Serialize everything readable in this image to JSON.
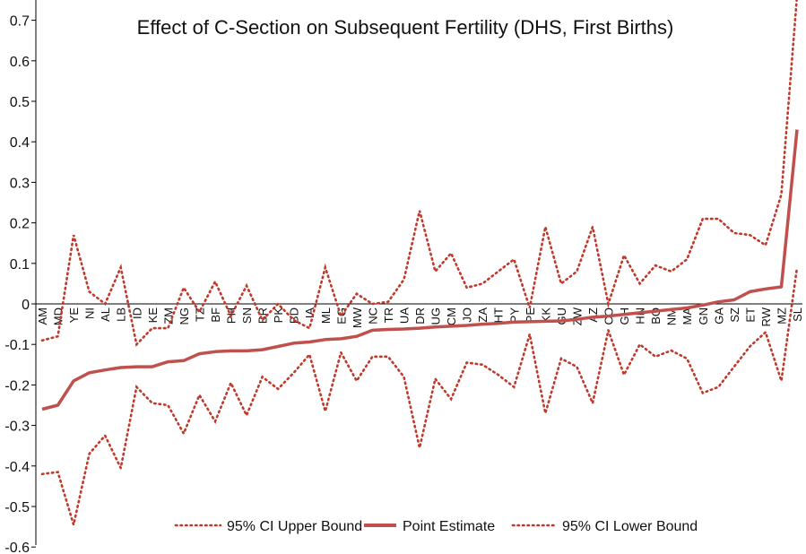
{
  "chart_data": {
    "type": "line",
    "title": "Effect of C-Section on Subsequent Fertility (DHS, First Births)",
    "xlabel": "",
    "ylabel": "",
    "ylim": [
      -0.6,
      0.75
    ],
    "yticks": [
      "0.7",
      "0.6",
      "0.5",
      "0.4",
      "0.3",
      "0.2",
      "0.1",
      "0",
      "-0.1",
      "-0.2",
      "-0.3",
      "-0.4",
      "-0.5",
      "-0.6"
    ],
    "grid": false,
    "legend_position": "bottom",
    "categories": [
      "AM",
      "MD",
      "YE",
      "NI",
      "AL",
      "LB",
      "ID",
      "KE",
      "ZM",
      "NG",
      "TZ",
      "BF",
      "PH",
      "SN",
      "BR",
      "PK",
      "BD",
      "IA",
      "ML",
      "EG",
      "MW",
      "NC",
      "TR",
      "UA",
      "DR",
      "UG",
      "CM",
      "JO",
      "ZA",
      "HT",
      "PY",
      "PE",
      "KK",
      "GU",
      "ZW",
      "AZ",
      "CO",
      "GH",
      "HN",
      "BO",
      "NM",
      "MA",
      "GN",
      "GA",
      "SZ",
      "ET",
      "RW",
      "MZ",
      "SL"
    ],
    "series": [
      {
        "name": "95% CI Upper Bound",
        "style": "dotted",
        "color": "#c0392b",
        "values": [
          -0.09,
          -0.08,
          0.17,
          0.03,
          0.0,
          0.09,
          -0.1,
          -0.06,
          -0.06,
          0.04,
          -0.02,
          0.055,
          -0.03,
          0.045,
          -0.04,
          0.0,
          -0.04,
          -0.06,
          0.09,
          -0.03,
          0.025,
          0.0,
          0.005,
          0.06,
          0.23,
          0.08,
          0.125,
          0.04,
          0.05,
          0.08,
          0.11,
          -0.01,
          0.19,
          0.05,
          0.08,
          0.19,
          0.0,
          0.12,
          0.05,
          0.095,
          0.08,
          0.11,
          0.21,
          0.21,
          0.175,
          0.17,
          0.145,
          0.27,
          0.76
        ]
      },
      {
        "name": "Point Estimate",
        "style": "solid",
        "color": "#c0504d",
        "values": [
          -0.26,
          -0.25,
          -0.19,
          -0.17,
          -0.163,
          -0.157,
          -0.155,
          -0.155,
          -0.143,
          -0.14,
          -0.123,
          -0.118,
          -0.116,
          -0.116,
          -0.113,
          -0.105,
          -0.097,
          -0.094,
          -0.088,
          -0.086,
          -0.08,
          -0.065,
          -0.063,
          -0.062,
          -0.06,
          -0.057,
          -0.055,
          -0.053,
          -0.05,
          -0.048,
          -0.045,
          -0.044,
          -0.043,
          -0.042,
          -0.038,
          -0.033,
          -0.03,
          -0.026,
          -0.022,
          -0.018,
          -0.014,
          -0.01,
          -0.003,
          0.005,
          0.01,
          0.03,
          0.037,
          0.042,
          0.43
        ]
      },
      {
        "name": "95% CI Lower Bound",
        "style": "dotted",
        "color": "#c0392b",
        "values": [
          -0.42,
          -0.415,
          -0.545,
          -0.37,
          -0.325,
          -0.405,
          -0.205,
          -0.245,
          -0.25,
          -0.32,
          -0.225,
          -0.29,
          -0.195,
          -0.275,
          -0.18,
          -0.21,
          -0.17,
          -0.125,
          -0.265,
          -0.12,
          -0.19,
          -0.13,
          -0.13,
          -0.18,
          -0.355,
          -0.185,
          -0.235,
          -0.145,
          -0.15,
          -0.175,
          -0.205,
          -0.075,
          -0.27,
          -0.135,
          -0.155,
          -0.245,
          -0.065,
          -0.175,
          -0.1,
          -0.13,
          -0.115,
          -0.135,
          -0.22,
          -0.205,
          -0.155,
          -0.105,
          -0.07,
          -0.19,
          0.09
        ]
      }
    ]
  }
}
